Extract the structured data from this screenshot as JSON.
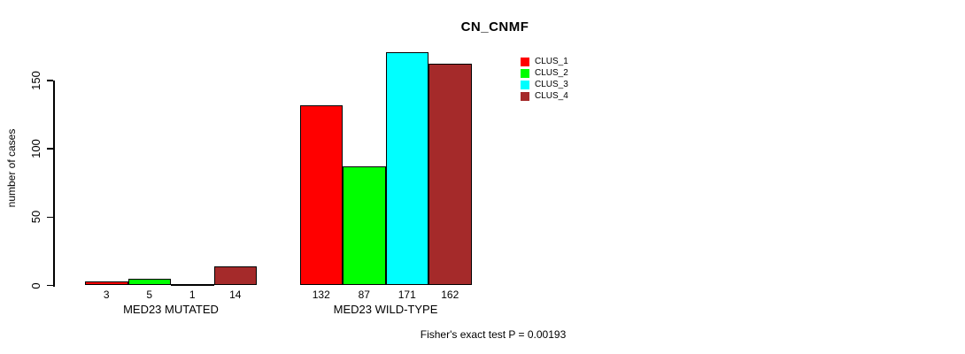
{
  "chart_data": {
    "type": "bar",
    "title": "CN_CNMF",
    "ylabel": "number of cases",
    "xlabel": "",
    "categories": [
      "MED23 MUTATED",
      "MED23 WILD-TYPE"
    ],
    "series": [
      {
        "name": "CLUS_1",
        "color": "#ff0000",
        "values": [
          3,
          132
        ]
      },
      {
        "name": "CLUS_2",
        "color": "#00ff00",
        "values": [
          5,
          87
        ]
      },
      {
        "name": "CLUS_3",
        "color": "#00ffff",
        "values": [
          1,
          171
        ]
      },
      {
        "name": "CLUS_4",
        "color": "#a52a2a",
        "values": [
          14,
          162
        ]
      }
    ],
    "yticks": [
      0,
      50,
      100,
      150
    ],
    "ylim": [
      0,
      175
    ],
    "grid": false,
    "bar_border_color": "#000000",
    "value_labels_shown": true,
    "legend_position": "top-right",
    "annotation": "Fisher's exact test P = 0.00193"
  }
}
